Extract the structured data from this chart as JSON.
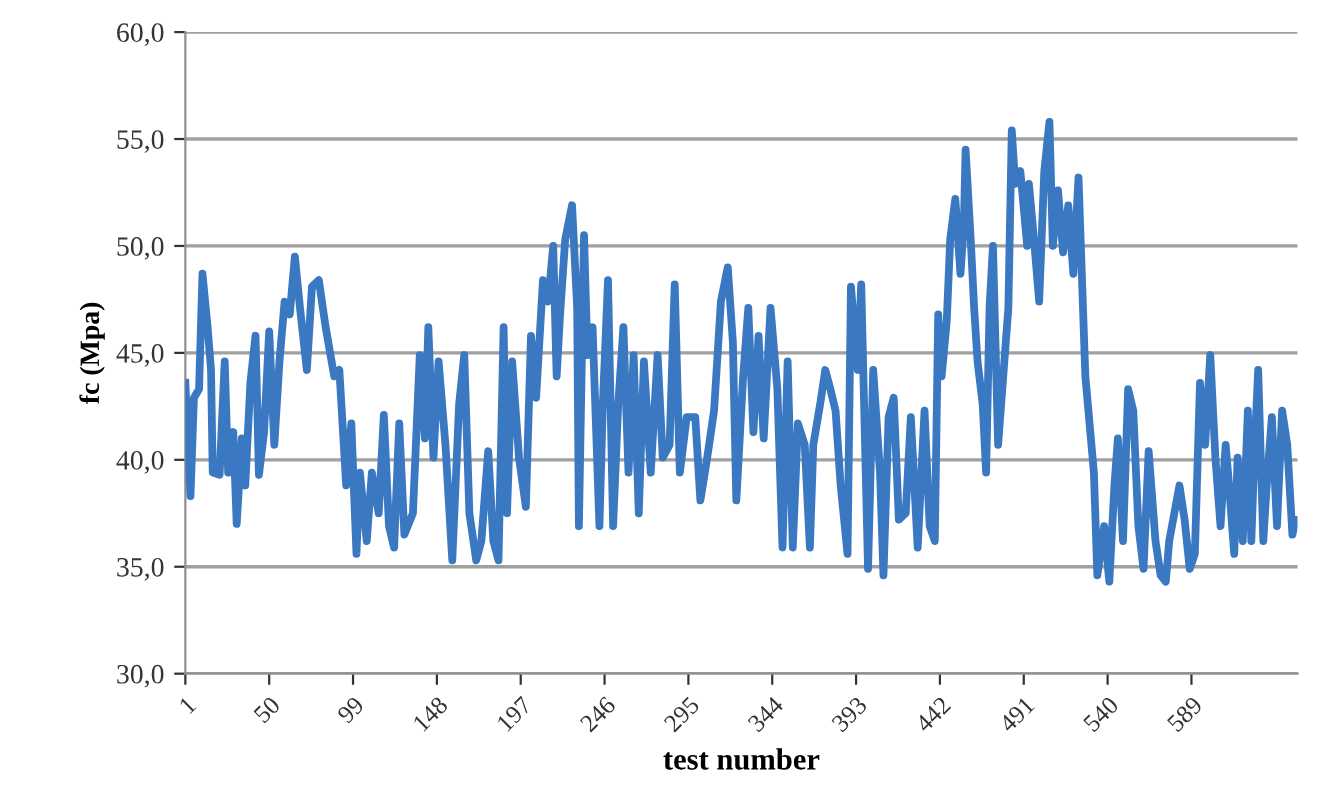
{
  "chart_data": {
    "type": "line",
    "xlabel": "test number",
    "ylabel": "fc (Mpa)",
    "xlim": [
      1,
      651
    ],
    "xticks": [
      1,
      50,
      99,
      148,
      197,
      246,
      295,
      344,
      393,
      442,
      491,
      540,
      589
    ],
    "ylim": [
      30,
      60
    ],
    "yticks": [
      {
        "value": 30,
        "label": "30,0"
      },
      {
        "value": 35,
        "label": "35,0"
      },
      {
        "value": 40,
        "label": "40,0"
      },
      {
        "value": 45,
        "label": "45,0"
      },
      {
        "value": 50,
        "label": "50,0"
      },
      {
        "value": 55,
        "label": "55,0"
      },
      {
        "value": 60,
        "label": "60,0"
      }
    ],
    "grid": "y",
    "series": [
      {
        "color": "#3a78c2",
        "x": [
          1,
          4,
          6,
          9,
          11,
          14,
          16,
          17,
          21,
          24,
          26,
          29,
          31,
          34,
          36,
          39,
          42,
          44,
          47,
          50,
          53,
          56,
          59,
          62,
          65,
          68,
          72,
          75,
          79,
          83,
          88,
          91,
          95,
          98,
          101,
          103,
          107,
          110,
          114,
          117,
          120,
          123,
          126,
          129,
          134,
          138,
          141,
          143,
          146,
          149,
          153,
          157,
          161,
          164,
          167,
          171,
          174,
          178,
          181,
          184,
          187,
          189,
          192,
          196,
          200,
          203,
          206,
          210,
          213,
          216,
          218,
          220,
          223,
          227,
          230,
          231,
          234,
          236,
          239,
          243,
          245,
          248,
          251,
          254,
          257,
          260,
          263,
          266,
          269,
          273,
          277,
          280,
          284,
          287,
          290,
          294,
          299,
          302,
          306,
          310,
          314,
          318,
          321,
          323,
          327,
          330,
          333,
          336,
          339,
          343,
          347,
          350,
          353,
          356,
          359,
          363,
          366,
          368,
          372,
          375,
          378,
          381,
          384,
          388,
          390,
          394,
          396,
          400,
          403,
          407,
          409,
          412,
          415,
          418,
          422,
          425,
          429,
          433,
          436,
          439,
          441,
          443,
          446,
          448,
          451,
          454,
          456,
          457,
          460,
          462,
          464,
          467,
          469,
          471,
          473,
          476,
          479,
          482,
          484,
          486,
          489,
          493,
          494,
          497,
          500,
          503,
          506,
          508,
          511,
          514,
          517,
          520,
          523,
          527,
          532,
          534,
          538,
          541,
          544,
          546,
          549,
          552,
          555,
          558,
          561,
          564,
          568,
          571,
          574,
          576,
          579,
          582,
          585,
          588,
          591,
          594,
          597,
          600,
          603,
          606,
          609,
          611,
          614,
          616,
          619,
          622,
          624,
          626,
          628,
          631,
          633,
          636,
          639,
          642,
          645,
          648,
          650
        ],
        "values": [
          43.6,
          38.3,
          42.9,
          43.3,
          48.7,
          46.2,
          44.2,
          39.4,
          39.3,
          44.6,
          39.4,
          41.3,
          37.0,
          41.0,
          38.8,
          43.6,
          45.8,
          39.3,
          41.3,
          46.0,
          40.7,
          44.6,
          47.4,
          46.8,
          49.5,
          47.1,
          44.2,
          48.1,
          48.4,
          46.2,
          43.9,
          44.2,
          38.8,
          41.7,
          35.6,
          39.4,
          36.2,
          39.4,
          37.5,
          42.1,
          36.9,
          35.9,
          41.7,
          36.5,
          37.5,
          44.9,
          41.0,
          46.2,
          40.1,
          44.6,
          40.7,
          35.3,
          42.6,
          44.9,
          37.5,
          35.3,
          36.2,
          40.4,
          36.2,
          35.3,
          46.2,
          37.5,
          44.6,
          40.1,
          37.8,
          45.8,
          42.9,
          48.4,
          47.4,
          50.0,
          43.9,
          46.8,
          50.3,
          51.9,
          47.1,
          36.9,
          50.5,
          44.9,
          46.2,
          36.9,
          42.6,
          48.4,
          36.9,
          42.6,
          46.2,
          39.4,
          44.9,
          37.5,
          44.6,
          39.4,
          44.9,
          40.1,
          40.7,
          48.2,
          39.4,
          42.0,
          42.0,
          38.1,
          40.1,
          42.3,
          47.4,
          49.0,
          45.5,
          38.1,
          43.9,
          47.1,
          41.3,
          45.8,
          41.0,
          47.1,
          43.3,
          35.9,
          44.6,
          35.9,
          41.7,
          40.7,
          35.9,
          40.7,
          42.6,
          44.2,
          43.3,
          42.3,
          38.8,
          35.6,
          48.1,
          44.2,
          48.2,
          34.9,
          44.2,
          39.4,
          34.6,
          42.0,
          42.9,
          37.2,
          37.5,
          42.0,
          35.9,
          42.3,
          36.9,
          36.2,
          46.8,
          43.9,
          46.5,
          50.3,
          52.2,
          48.7,
          51.0,
          54.5,
          50.3,
          47.1,
          44.6,
          42.6,
          39.4,
          47.1,
          50.0,
          40.7,
          43.9,
          47.1,
          55.4,
          52.9,
          53.5,
          50.0,
          52.9,
          50.3,
          47.4,
          53.5,
          55.8,
          50.0,
          52.6,
          49.7,
          51.9,
          48.7,
          53.2,
          43.9,
          39.4,
          34.6,
          36.9,
          34.3,
          38.8,
          41.0,
          36.2,
          43.3,
          42.3,
          36.9,
          34.9,
          40.4,
          36.2,
          34.6,
          34.3,
          36.2,
          37.5,
          38.8,
          37.2,
          34.9,
          35.6,
          43.6,
          40.7,
          44.9,
          40.1,
          36.9,
          40.7,
          38.8,
          35.6,
          40.1,
          36.2,
          42.3,
          36.2,
          40.7,
          44.2,
          36.2,
          38.8,
          42.0,
          36.9,
          42.3,
          40.7,
          36.5,
          37.2
        ]
      }
    ]
  }
}
